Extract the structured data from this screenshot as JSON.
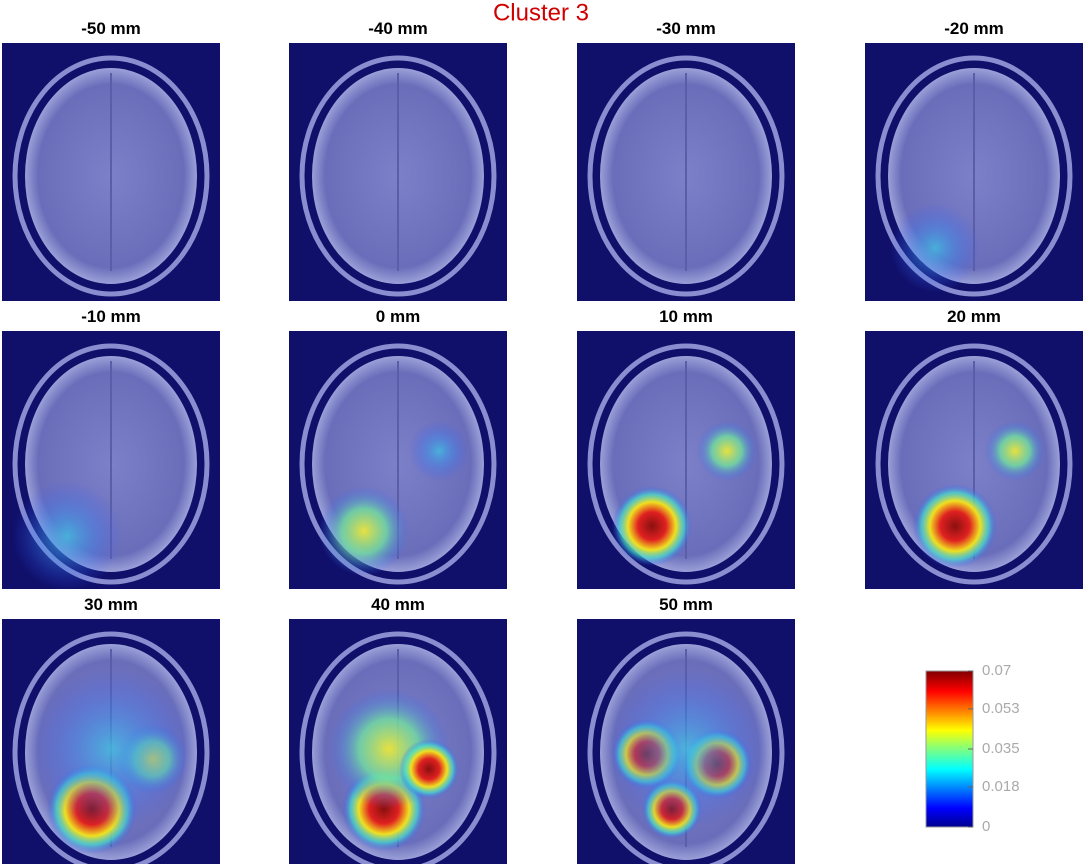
{
  "title": "Cluster 3",
  "panels": [
    {
      "label": "-50 mm"
    },
    {
      "label": "-40 mm"
    },
    {
      "label": "-30 mm"
    },
    {
      "label": "-20 mm"
    },
    {
      "label": "-10 mm"
    },
    {
      "label": "0 mm"
    },
    {
      "label": "10 mm"
    },
    {
      "label": "20 mm"
    },
    {
      "label": "30 mm"
    },
    {
      "label": "40 mm"
    },
    {
      "label": "50 mm"
    }
  ],
  "colorbar": {
    "lim": [
      0,
      0.07
    ],
    "ticks": [
      0,
      0.018,
      0.035,
      0.053,
      0.07
    ]
  }
}
